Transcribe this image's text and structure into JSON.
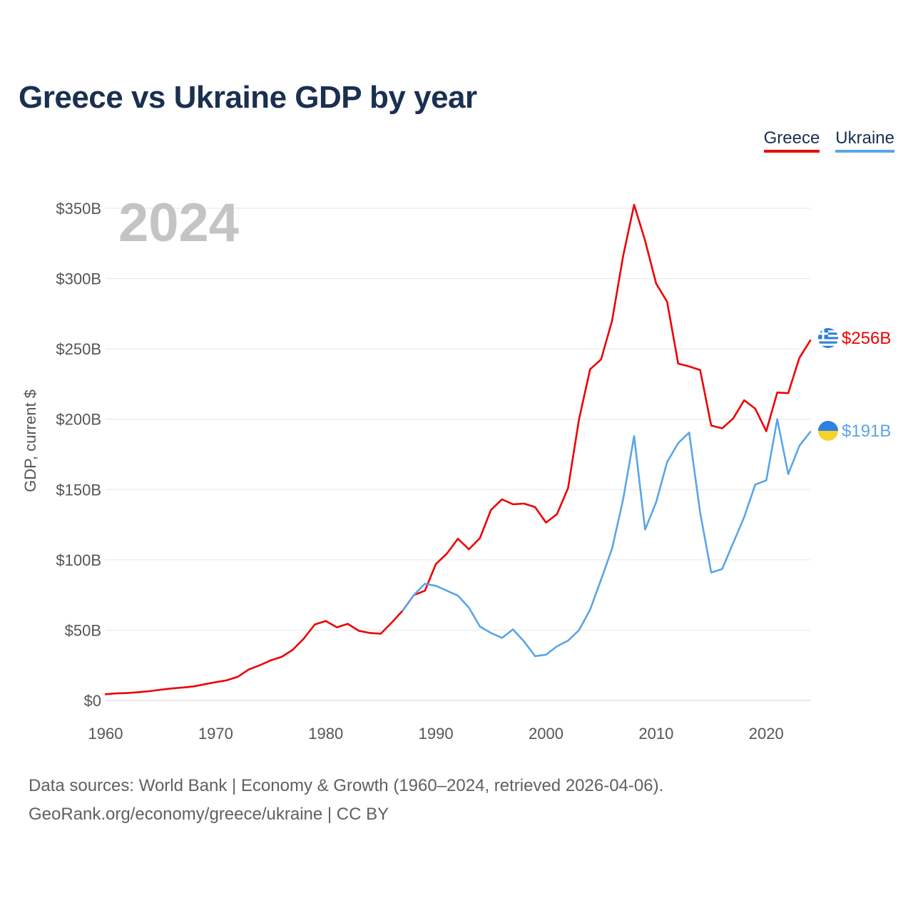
{
  "title": "Greece vs Ukraine GDP by year",
  "legend": {
    "greece": "Greece",
    "ukraine": "Ukraine"
  },
  "year_overlay": "2024",
  "source_line1": "Data sources: World Bank | Economy & Growth (1960–2024, retrieved 2026-04-06).",
  "source_line2": "GeoRank.org/economy/greece/ukraine | CC BY",
  "colors": {
    "greece": "#ee0000",
    "ukraine": "#5aa5e6",
    "grid": "#e6e6e6",
    "text": "#555555",
    "title": "#1b3050"
  },
  "chart_data": {
    "type": "line",
    "title": "Greece vs Ukraine GDP by year",
    "xlabel": "",
    "ylabel": "GDP, current $",
    "xlim": [
      1960,
      2024
    ],
    "ylim": [
      0,
      350
    ],
    "y_unit": "billion USD",
    "x_ticks": [
      1960,
      1970,
      1980,
      1990,
      2000,
      2010,
      2020
    ],
    "y_ticks": [
      {
        "value": 0,
        "label": "$0"
      },
      {
        "value": 50,
        "label": "$50B"
      },
      {
        "value": 100,
        "label": "$100B"
      },
      {
        "value": 150,
        "label": "$150B"
      },
      {
        "value": 200,
        "label": "$200B"
      },
      {
        "value": 250,
        "label": "$250B"
      },
      {
        "value": 300,
        "label": "$300B"
      },
      {
        "value": 350,
        "label": "$350B"
      }
    ],
    "series": [
      {
        "name": "Greece",
        "color": "#ee0000",
        "end_label": "$256B",
        "x": [
          1960,
          1961,
          1962,
          1963,
          1964,
          1965,
          1966,
          1967,
          1968,
          1969,
          1970,
          1971,
          1972,
          1973,
          1974,
          1975,
          1976,
          1977,
          1978,
          1979,
          1980,
          1981,
          1982,
          1983,
          1984,
          1985,
          1986,
          1987,
          1988,
          1989,
          1990,
          1991,
          1992,
          1993,
          1994,
          1995,
          1996,
          1997,
          1998,
          1999,
          2000,
          2001,
          2002,
          2003,
          2004,
          2005,
          2006,
          2007,
          2008,
          2009,
          2010,
          2011,
          2012,
          2013,
          2014,
          2015,
          2016,
          2017,
          2018,
          2019,
          2020,
          2021,
          2022,
          2023,
          2024
        ],
        "values": [
          4.4,
          5.0,
          5.3,
          5.9,
          6.6,
          7.6,
          8.5,
          9.2,
          10.0,
          11.5,
          13.0,
          14.3,
          16.8,
          22.0,
          25.0,
          28.5,
          31.0,
          36.0,
          44.0,
          54.0,
          56.5,
          52.0,
          54.5,
          49.5,
          48.0,
          47.5,
          55.5,
          64.0,
          75.0,
          78.0,
          97.0,
          104.5,
          115.0,
          107.5,
          115.5,
          135.5,
          143.0,
          139.5,
          140.0,
          137.5,
          126.5,
          132.5,
          151.0,
          200.0,
          235.5,
          242.5,
          270.0,
          316.0,
          352.5,
          327.0,
          296.5,
          283.5,
          239.5,
          237.5,
          235.0,
          195.5,
          193.5,
          200.5,
          213.5,
          207.5,
          191.5,
          219.0,
          218.5,
          243.5,
          256.0
        ]
      },
      {
        "name": "Ukraine",
        "color": "#5aa5e6",
        "end_label": "$191B",
        "x": [
          1987,
          1988,
          1989,
          1990,
          1991,
          1992,
          1993,
          1994,
          1995,
          1996,
          1997,
          1998,
          1999,
          2000,
          2001,
          2002,
          2003,
          2004,
          2005,
          2006,
          2007,
          2008,
          2009,
          2010,
          2011,
          2012,
          2013,
          2014,
          2015,
          2016,
          2017,
          2018,
          2019,
          2020,
          2021,
          2022,
          2023,
          2024
        ],
        "values": [
          64.0,
          75.0,
          83.0,
          81.5,
          78.0,
          74.5,
          66.0,
          52.5,
          48.0,
          44.5,
          50.5,
          42.0,
          31.5,
          32.5,
          38.5,
          42.5,
          50.0,
          64.5,
          86.0,
          108.0,
          143.0,
          188.0,
          121.5,
          141.0,
          169.5,
          183.0,
          190.5,
          133.5,
          91.0,
          93.5,
          112.0,
          130.5,
          153.5,
          156.5,
          200.0,
          161.0,
          181.0,
          191.0
        ]
      }
    ]
  }
}
